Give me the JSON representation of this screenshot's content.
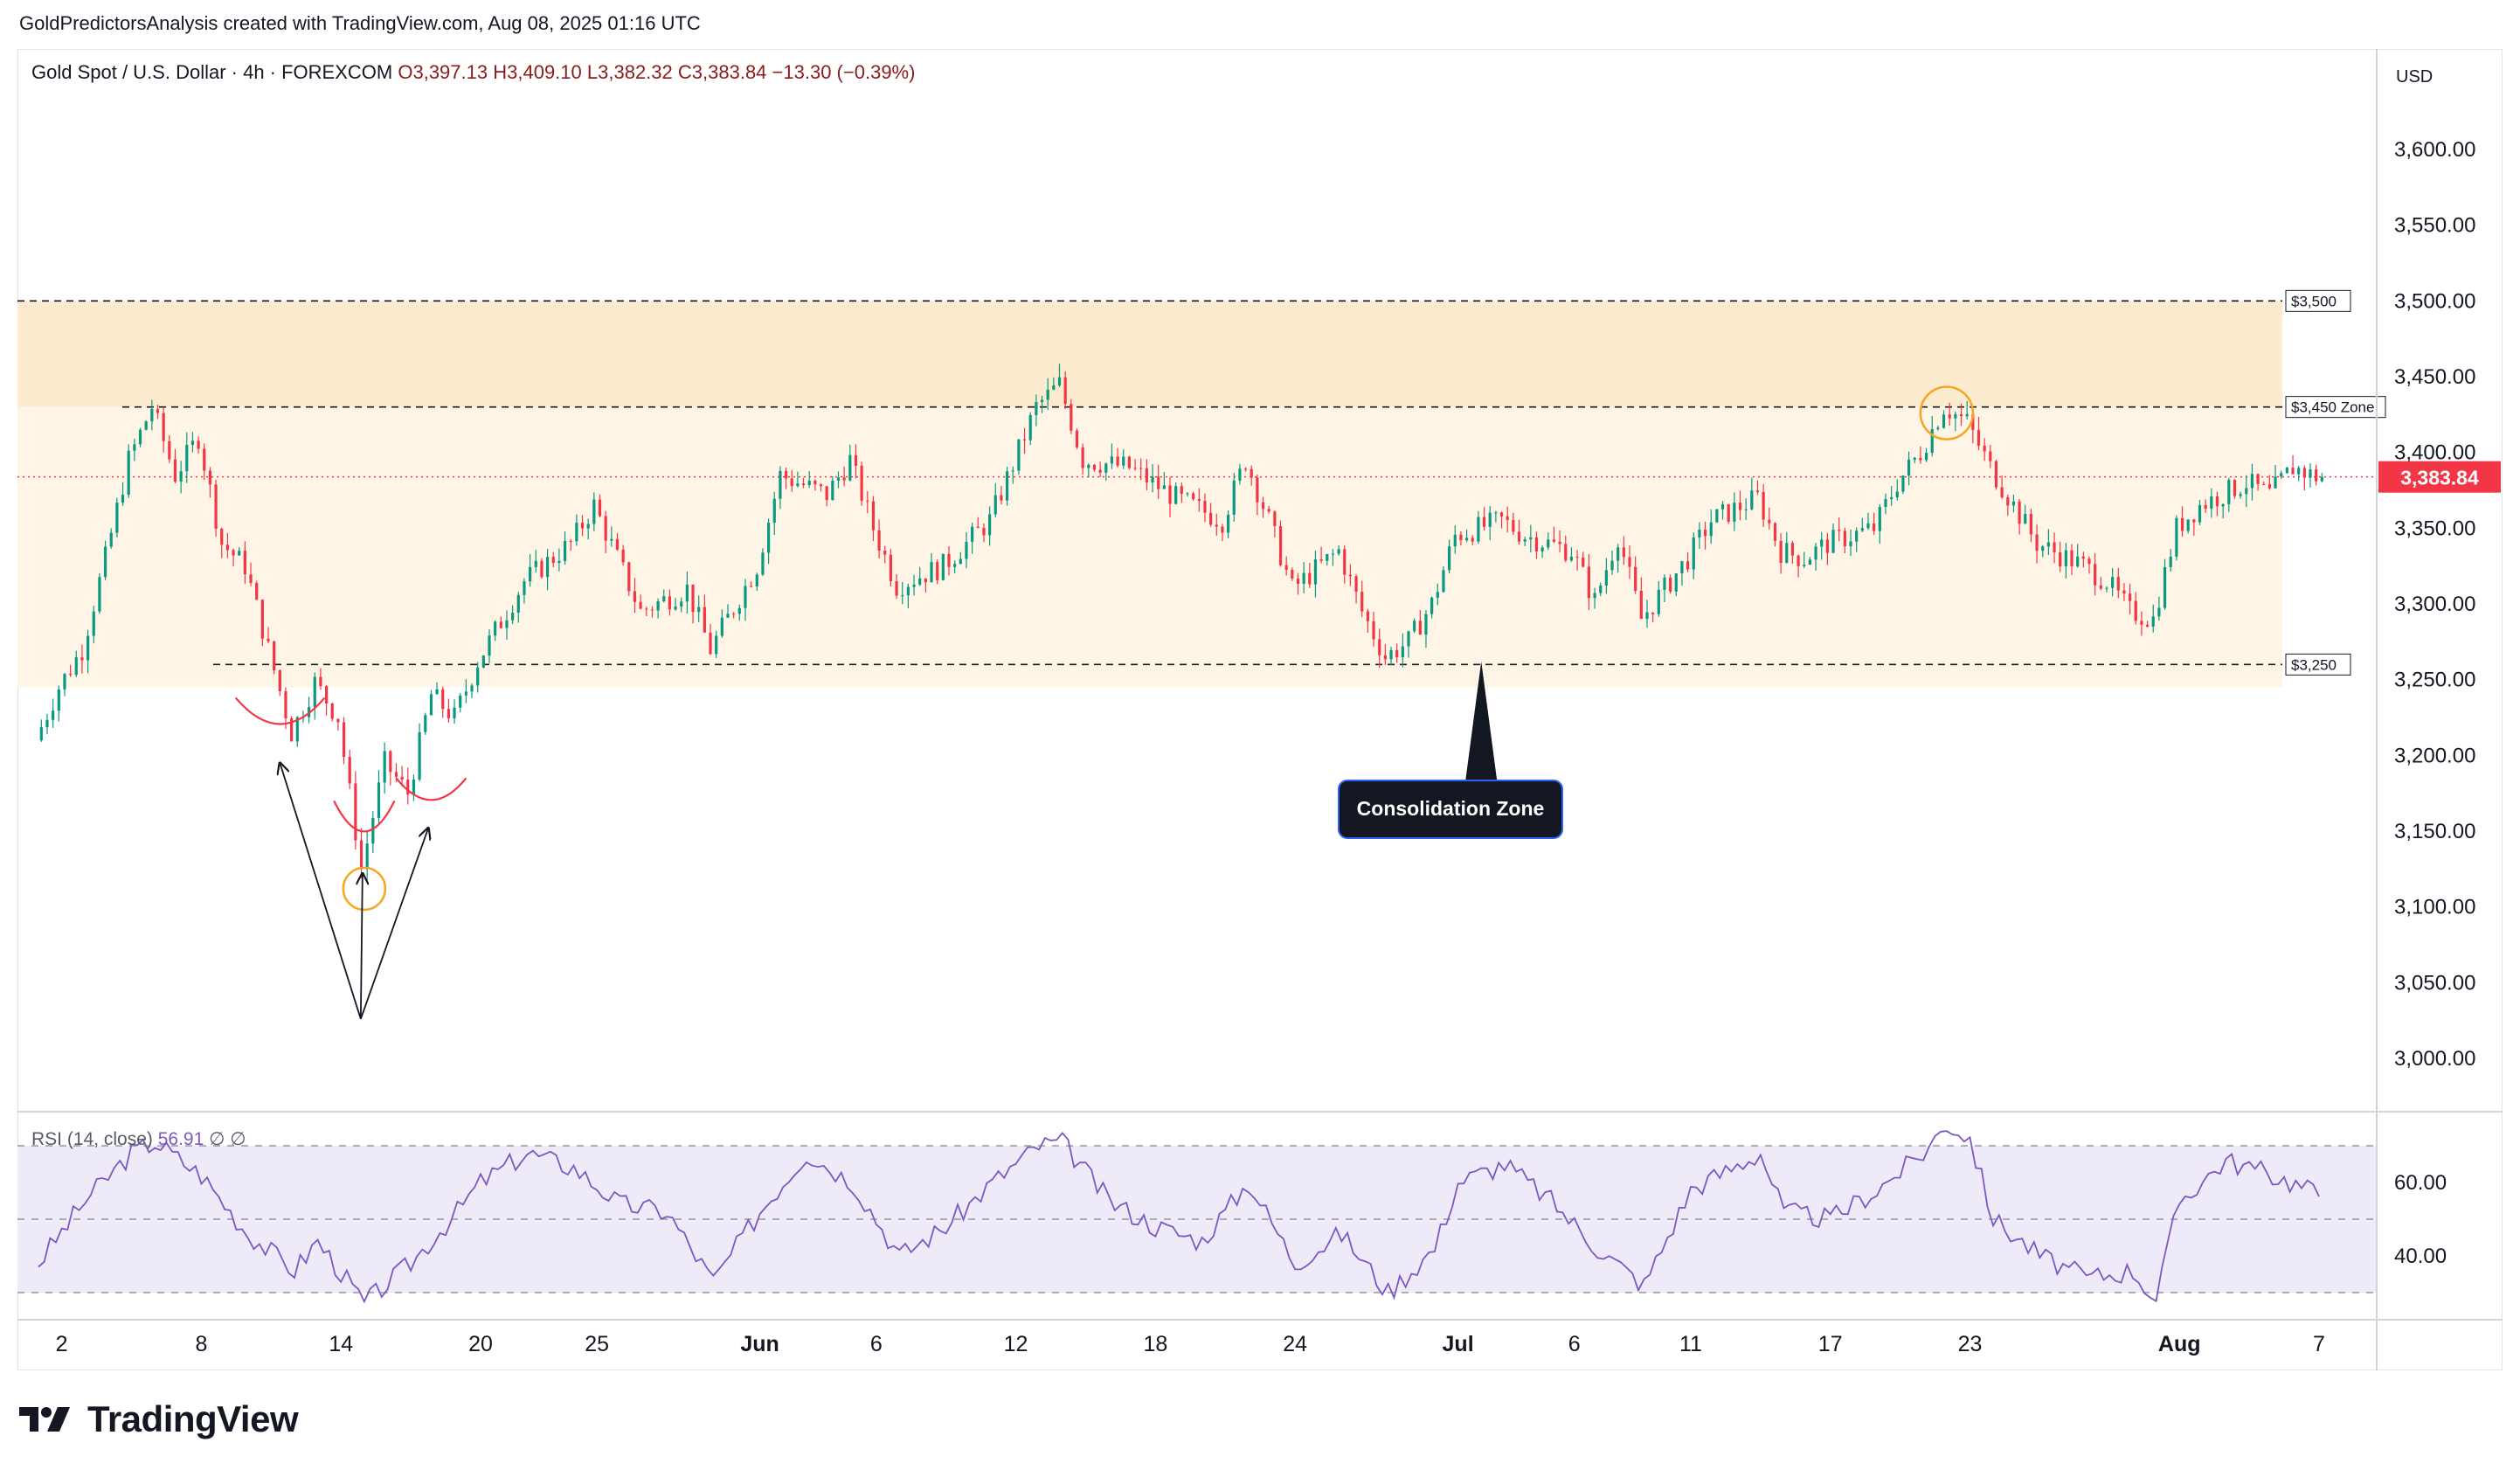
{
  "header": {
    "attribution": "GoldPredictorsAnalysis created with TradingView.com, Aug 08, 2025 01:16 UTC"
  },
  "legend": {
    "symbol": "Gold Spot / U.S. Dollar · 4h · FOREXCOM",
    "open": "O3,397.13",
    "high": "H3,409.10",
    "low": "L3,382.32",
    "close": "C3,383.84",
    "change": "−13.30 (−0.39%)"
  },
  "rsi_legend": {
    "label": "RSI (14, close)",
    "value": "56.91",
    "extra1": "∅",
    "extra2": "∅"
  },
  "currency": "USD",
  "last_price": {
    "value": "3,383.84",
    "color": "#f23645"
  },
  "colors": {
    "up": "#089981",
    "down": "#f23645",
    "zone_upper": "#fdebd0",
    "zone_lower": "#fff5e6",
    "rsi_line": "#7e57c2",
    "rsi_band": "#efeaf8",
    "circle": "#f5a623"
  },
  "annotations": {
    "consolidation": "Consolidation Zone",
    "label_3500": "$3,500",
    "label_3450": "$3,450 Zone",
    "label_3250": "$3,250"
  },
  "footer": {
    "brand": "TradingView"
  },
  "chart_data": [
    {
      "type": "candlestick",
      "title": "Gold Spot / U.S. Dollar · 4h · FOREXCOM",
      "y_axis_ticks": [
        "3,000.00",
        "3,050.00",
        "3,100.00",
        "3,150.00",
        "3,200.00",
        "3,250.00",
        "3,300.00",
        "3,350.00",
        "3,400.00",
        "3,450.00",
        "3,500.00",
        "3,550.00",
        "3,600.00"
      ],
      "ylim": [
        2965,
        3660
      ],
      "x_tick_labels": [
        "2",
        "8",
        "14",
        "20",
        "25",
        "Jun",
        "6",
        "12",
        "18",
        "24",
        "Jul",
        "6",
        "11",
        "17",
        "23",
        "Aug",
        "7"
      ],
      "x_tick_dates": [
        "2025-05-02",
        "2025-05-08",
        "2025-05-14",
        "2025-05-20",
        "2025-05-25",
        "2025-06-01",
        "2025-06-06",
        "2025-06-12",
        "2025-06-18",
        "2025-06-24",
        "2025-07-01",
        "2025-07-06",
        "2025-07-11",
        "2025-07-17",
        "2025-07-23",
        "2025-08-01",
        "2025-08-07"
      ],
      "date_range": [
        "2025-05-01",
        "2025-08-07"
      ],
      "levels": [
        3500,
        3430,
        3260
      ],
      "zones": [
        {
          "from": 3430,
          "to": 3500
        },
        {
          "from": 3245,
          "to": 3430
        }
      ],
      "price_path": [
        [
          "2025-05-01",
          3210
        ],
        [
          "2025-05-02",
          3245
        ],
        [
          "2025-05-03",
          3270
        ],
        [
          "2025-05-04",
          3330
        ],
        [
          "2025-05-05",
          3395
        ],
        [
          "2025-05-06",
          3430
        ],
        [
          "2025-05-07",
          3385
        ],
        [
          "2025-05-08",
          3410
        ],
        [
          "2025-05-09",
          3340
        ],
        [
          "2025-05-10",
          3325
        ],
        [
          "2025-05-11",
          3270
        ],
        [
          "2025-05-12",
          3215
        ],
        [
          "2025-05-13",
          3248
        ],
        [
          "2025-05-14",
          3225
        ],
        [
          "2025-05-15",
          3125
        ],
        [
          "2025-05-16",
          3195
        ],
        [
          "2025-05-17",
          3175
        ],
        [
          "2025-05-18",
          3240
        ],
        [
          "2025-05-19",
          3225
        ],
        [
          "2025-05-20",
          3262
        ],
        [
          "2025-05-22",
          3315
        ],
        [
          "2025-05-24",
          3340
        ],
        [
          "2025-05-25",
          3365
        ],
        [
          "2025-05-27",
          3295
        ],
        [
          "2025-05-29",
          3310
        ],
        [
          "2025-05-30",
          3270
        ],
        [
          "2025-06-01",
          3325
        ],
        [
          "2025-06-02",
          3385
        ],
        [
          "2025-06-04",
          3372
        ],
        [
          "2025-06-05",
          3395
        ],
        [
          "2025-06-06",
          3350
        ],
        [
          "2025-06-07",
          3312
        ],
        [
          "2025-06-09",
          3325
        ],
        [
          "2025-06-11",
          3355
        ],
        [
          "2025-06-12",
          3392
        ],
        [
          "2025-06-13",
          3430
        ],
        [
          "2025-06-14",
          3445
        ],
        [
          "2025-06-15",
          3395
        ],
        [
          "2025-06-17",
          3390
        ],
        [
          "2025-06-19",
          3370
        ],
        [
          "2025-06-21",
          3355
        ],
        [
          "2025-06-22",
          3395
        ],
        [
          "2025-06-23",
          3355
        ],
        [
          "2025-06-24",
          3310
        ],
        [
          "2025-06-26",
          3335
        ],
        [
          "2025-06-27",
          3295
        ],
        [
          "2025-06-28",
          3265
        ],
        [
          "2025-06-29",
          3275
        ],
        [
          "2025-06-30",
          3300
        ],
        [
          "2025-07-01",
          3345
        ],
        [
          "2025-07-03",
          3355
        ],
        [
          "2025-07-04",
          3345
        ],
        [
          "2025-07-06",
          3335
        ],
        [
          "2025-07-07",
          3302
        ],
        [
          "2025-07-08",
          3345
        ],
        [
          "2025-07-09",
          3290
        ],
        [
          "2025-07-11",
          3330
        ],
        [
          "2025-07-12",
          3355
        ],
        [
          "2025-07-14",
          3370
        ],
        [
          "2025-07-15",
          3335
        ],
        [
          "2025-07-16",
          3330
        ],
        [
          "2025-07-17",
          3340
        ],
        [
          "2025-07-19",
          3350
        ],
        [
          "2025-07-20",
          3380
        ],
        [
          "2025-07-21",
          3400
        ],
        [
          "2025-07-22",
          3430
        ],
        [
          "2025-07-23",
          3420
        ],
        [
          "2025-07-24",
          3390
        ],
        [
          "2025-07-25",
          3365
        ],
        [
          "2025-07-26",
          3340
        ],
        [
          "2025-07-28",
          3325
        ],
        [
          "2025-07-29",
          3315
        ],
        [
          "2025-07-30",
          3295
        ],
        [
          "2025-07-31",
          3290
        ],
        [
          "2025-08-01",
          3350
        ],
        [
          "2025-08-02",
          3365
        ],
        [
          "2025-08-04",
          3380
        ],
        [
          "2025-08-05",
          3372
        ],
        [
          "2025-08-06",
          3390
        ],
        [
          "2025-08-07",
          3384
        ]
      ]
    },
    {
      "type": "line",
      "title": "RSI (14, close)",
      "y_axis_ticks": [
        "40.00",
        "60.00"
      ],
      "ylim": [
        24,
        76
      ],
      "bands": [
        30,
        50,
        70
      ],
      "series": [
        {
          "values": [
            [
              "2025-05-01",
              38
            ],
            [
              "2025-05-03",
              55
            ],
            [
              "2025-05-05",
              68
            ],
            [
              "2025-05-06",
              71
            ],
            [
              "2025-05-08",
              62
            ],
            [
              "2025-05-10",
              46
            ],
            [
              "2025-05-12",
              36
            ],
            [
              "2025-05-13",
              44
            ],
            [
              "2025-05-15",
              27
            ],
            [
              "2025-05-17",
              38
            ],
            [
              "2025-05-19",
              52
            ],
            [
              "2025-05-20",
              60
            ],
            [
              "2025-05-22",
              68
            ],
            [
              "2025-05-24",
              64
            ],
            [
              "2025-05-26",
              54
            ],
            [
              "2025-05-28",
              52
            ],
            [
              "2025-05-30",
              33
            ],
            [
              "2025-06-01",
              52
            ],
            [
              "2025-06-03",
              68
            ],
            [
              "2025-06-05",
              60
            ],
            [
              "2025-06-07",
              40
            ],
            [
              "2025-06-09",
              48
            ],
            [
              "2025-06-11",
              60
            ],
            [
              "2025-06-13",
              70
            ],
            [
              "2025-06-14",
              71
            ],
            [
              "2025-06-16",
              55
            ],
            [
              "2025-06-18",
              48
            ],
            [
              "2025-06-20",
              44
            ],
            [
              "2025-06-22",
              60
            ],
            [
              "2025-06-24",
              38
            ],
            [
              "2025-06-26",
              46
            ],
            [
              "2025-06-28",
              30
            ],
            [
              "2025-06-30",
              42
            ],
            [
              "2025-07-01",
              60
            ],
            [
              "2025-07-03",
              65
            ],
            [
              "2025-07-05",
              55
            ],
            [
              "2025-07-07",
              42
            ],
            [
              "2025-07-09",
              32
            ],
            [
              "2025-07-11",
              58
            ],
            [
              "2025-07-14",
              68
            ],
            [
              "2025-07-15",
              52
            ],
            [
              "2025-07-17",
              50
            ],
            [
              "2025-07-19",
              58
            ],
            [
              "2025-07-21",
              68
            ],
            [
              "2025-07-22",
              76
            ],
            [
              "2025-07-23",
              72
            ],
            [
              "2025-07-24",
              50
            ],
            [
              "2025-07-26",
              40
            ],
            [
              "2025-07-28",
              34
            ],
            [
              "2025-07-30",
              36
            ],
            [
              "2025-07-31",
              28
            ],
            [
              "2025-08-01",
              55
            ],
            [
              "2025-08-03",
              66
            ],
            [
              "2025-08-05",
              62
            ],
            [
              "2025-08-07",
              57
            ]
          ]
        }
      ]
    }
  ]
}
